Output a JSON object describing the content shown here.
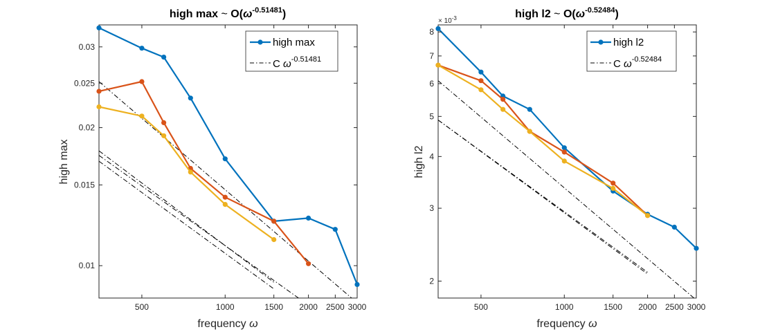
{
  "colors": {
    "blue": "#0072BD",
    "orange": "#D95319",
    "yellow": "#EDB120",
    "ref": "#000000"
  },
  "chart_data": [
    {
      "type": "line",
      "title_main": "high max ",
      "title_sim": "~",
      "title_O": " O(",
      "title_omega": "ω",
      "title_exp": "-0.51481",
      "title_close": ")",
      "xlabel_text": "frequency ",
      "xlabel_omega": "ω",
      "ylabel": "high max",
      "xscale": "log",
      "yscale": "log",
      "xlim": [
        350,
        3000
      ],
      "ylim": [
        0.0085,
        0.0335
      ],
      "xticks": [
        500,
        1000,
        1500,
        2000,
        2500,
        3000
      ],
      "xticklabels": [
        "500",
        "1000",
        "1500",
        "2000",
        "2500",
        "3000"
      ],
      "yticks": [
        0.01,
        0.015,
        0.02,
        0.025,
        0.03
      ],
      "yticklabels": [
        "0.01",
        "0.015",
        "0.02",
        "0.025",
        "0.03"
      ],
      "legend_position": "top-right",
      "legend": [
        {
          "label": "high max",
          "style": "line-marker",
          "color": "blue"
        },
        {
          "label_base": "C ",
          "label_omega": "ω",
          "label_exp": "-0.51481",
          "style": "dashdot",
          "color": "ref"
        }
      ],
      "series": [
        {
          "color": "blue",
          "x": [
            350,
            500,
            600,
            750,
            1000,
            1500,
            2000,
            2500,
            3000
          ],
          "y": [
            0.033,
            0.0298,
            0.0285,
            0.0232,
            0.0171,
            0.0125,
            0.0127,
            0.012,
            0.0091
          ]
        },
        {
          "color": "orange",
          "x": [
            350,
            500,
            600,
            750,
            1000,
            1500,
            2000
          ],
          "y": [
            0.024,
            0.0252,
            0.0205,
            0.0163,
            0.0141,
            0.0125,
            0.0101
          ]
        },
        {
          "color": "yellow",
          "x": [
            350,
            500,
            600,
            750,
            1000,
            1500
          ],
          "y": [
            0.0222,
            0.0212,
            0.0192,
            0.016,
            0.0136,
            0.0114
          ]
        }
      ],
      "references": [
        {
          "x": [
            350,
            3000
          ],
          "y": [
            0.0252,
            0.0083
          ]
        },
        {
          "x": [
            350,
            2000
          ],
          "y": [
            0.0174,
            0.0082
          ]
        },
        {
          "x": [
            350,
            1500
          ],
          "y": [
            0.0178,
            0.0092
          ]
        },
        {
          "x": [
            350,
            1500
          ],
          "y": [
            0.0169,
            0.0089
          ]
        }
      ]
    },
    {
      "type": "line",
      "title_main": "high l2 ",
      "title_sim": "~",
      "title_O": " O(",
      "title_omega": "ω",
      "title_exp": "-0.52484",
      "title_close": ")",
      "xlabel_text": "frequency ",
      "xlabel_omega": "ω",
      "ylabel": "high l2",
      "exponent_label": "× 10",
      "exponent_value": "-3",
      "xscale": "log",
      "yscale": "log",
      "xlim": [
        350,
        3000
      ],
      "ylim": [
        0.00182,
        0.00832
      ],
      "xticks": [
        500,
        1000,
        1500,
        2000,
        2500,
        3000
      ],
      "xticklabels": [
        "500",
        "1000",
        "1500",
        "2000",
        "2500",
        "3000"
      ],
      "yticks": [
        0.002,
        0.003,
        0.004,
        0.005,
        0.006,
        0.007,
        0.008
      ],
      "yticklabels": [
        "2",
        "3",
        "4",
        "5",
        "6",
        "7",
        "8"
      ],
      "legend_position": "top-right",
      "legend": [
        {
          "label": "high l2",
          "style": "line-marker",
          "color": "blue"
        },
        {
          "label_base": "C ",
          "label_omega": "ω",
          "label_exp": "-0.52484",
          "style": "dashdot",
          "color": "ref"
        }
      ],
      "series": [
        {
          "color": "blue",
          "x": [
            350,
            500,
            600,
            750,
            1000,
            1500,
            2000,
            2500,
            3000
          ],
          "y": [
            0.00815,
            0.0064,
            0.0056,
            0.0052,
            0.0042,
            0.0033,
            0.0029,
            0.0027,
            0.0024
          ]
        },
        {
          "color": "orange",
          "x": [
            350,
            500,
            600,
            750,
            1000,
            1500,
            2000
          ],
          "y": [
            0.00665,
            0.0061,
            0.0055,
            0.0046,
            0.0041,
            0.00345,
            0.00288
          ]
        },
        {
          "color": "yellow",
          "x": [
            350,
            500,
            600,
            750,
            1000,
            1500,
            2000
          ],
          "y": [
            0.00665,
            0.0058,
            0.0052,
            0.0046,
            0.0039,
            0.00335,
            0.00288
          ]
        }
      ],
      "references": [
        {
          "x": [
            350,
            3000
          ],
          "y": [
            0.0061,
            0.0018
          ]
        },
        {
          "x": [
            350,
            2000
          ],
          "y": [
            0.0049,
            0.0021
          ]
        },
        {
          "x": [
            350,
            2000
          ],
          "y": [
            0.0049,
            0.00208
          ]
        }
      ]
    }
  ]
}
